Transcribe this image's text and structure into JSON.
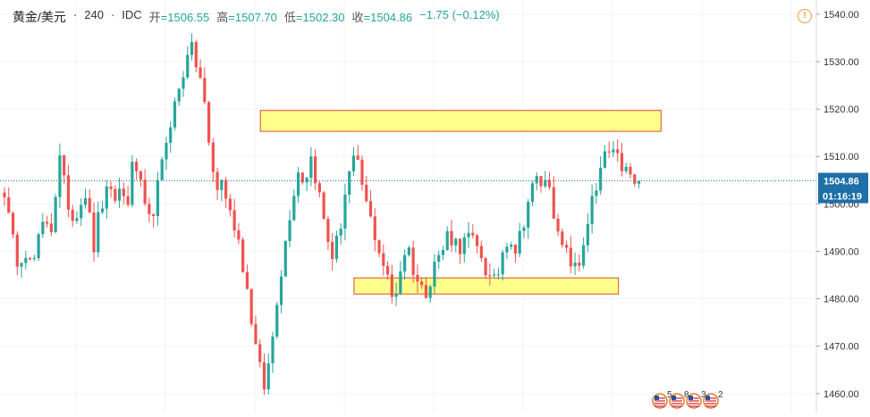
{
  "header": {
    "symbol": "黄金/美元",
    "interval": "240",
    "source": "IDC",
    "open_label": "开",
    "open": "=1506.55",
    "high_label": "高",
    "high": "=1507.70",
    "low_label": "低",
    "low": "=1502.30",
    "close_label": "收",
    "close": "=1504.86",
    "change": "−1.75 (−0.12%)"
  },
  "alert_icon": "!",
  "price_tag": {
    "price": "1504.86",
    "countdown": "01:16:19"
  },
  "events": [
    {
      "icon": "us-flag-icon",
      "label": "5"
    },
    {
      "icon": "us-flag-icon",
      "label": "8"
    },
    {
      "icon": "us-flag-icon",
      "label": "3"
    },
    {
      "icon": "us-flag-icon",
      "label": "2"
    }
  ],
  "colors": {
    "up": "#26a69a",
    "down": "#ef5350",
    "zone_fill": "#ffff77",
    "zone_border": "#d84b30",
    "last_price_line": "#1e6fa8",
    "tag_bg": "#1e6fa8"
  },
  "chart_data": {
    "type": "candlestick",
    "ylim": [
      1456,
      1543
    ],
    "y_ticks": [
      1540,
      1530,
      1520,
      1510,
      1500,
      1490,
      1480,
      1470,
      1460
    ],
    "y_tick_labels": [
      "1540.00",
      "1530.00",
      "1520.00",
      "1510.00",
      "1500.00",
      "1490.00",
      "1480.00",
      "1470.00",
      "1460.00"
    ],
    "last_price": 1504.86,
    "bar_count": 150,
    "close_path": [
      1503,
      1493,
      1488,
      1491,
      1486,
      1492,
      1497,
      1495,
      1510,
      1502,
      1497,
      1500,
      1503,
      1490,
      1499,
      1502,
      1501,
      1503,
      1500,
      1510,
      1503,
      1495,
      1500,
      1507,
      1516,
      1521,
      1526,
      1534,
      1530,
      1525,
      1512,
      1503,
      1505,
      1498,
      1495,
      1487,
      1478,
      1468,
      1461,
      1468,
      1481,
      1490,
      1500,
      1507,
      1505,
      1510,
      1503,
      1495,
      1489,
      1493,
      1503,
      1509,
      1507,
      1500,
      1495,
      1490,
      1485,
      1479,
      1486,
      1492,
      1486,
      1482,
      1482,
      1488,
      1489,
      1494,
      1492,
      1491,
      1493,
      1491,
      1489,
      1484,
      1483,
      1490,
      1494,
      1490,
      1496,
      1502,
      1505,
      1504,
      1505,
      1493,
      1490,
      1488,
      1485,
      1493,
      1500,
      1503,
      1511,
      1510,
      1509,
      1507,
      1505,
      1503
    ],
    "zones": [
      {
        "from_bar": 58,
        "to_bar": 150,
        "y_low": 1515.3,
        "y_high": 1519.7
      },
      {
        "from_bar": 80,
        "to_bar": 140,
        "y_low": 1481,
        "y_high": 1484.4
      }
    ]
  }
}
